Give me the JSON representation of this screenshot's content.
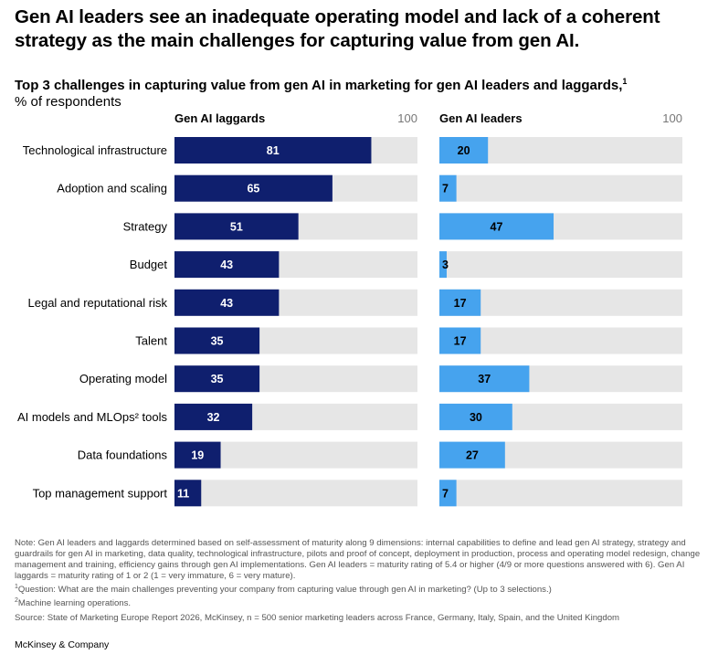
{
  "headline": "Gen AI leaders see an inadequate operating model and lack of a coherent strategy as the main challenges for capturing value from gen AI.",
  "subtitle": "Top 3 challenges in capturing value from gen AI in marketing for gen AI leaders and laggards,",
  "subtitle_footnote": "1",
  "unit_label": "% of respondents",
  "chart_data": {
    "type": "bar",
    "orientation": "horizontal",
    "categories": [
      "Technological infrastructure",
      "Adoption and scaling",
      "Strategy",
      "Budget",
      "Legal and reputational risk",
      "Talent",
      "Operating model",
      "AI models and MLOps² tools",
      "Data foundations",
      "Top management support"
    ],
    "series": [
      {
        "name": "Gen AI laggards",
        "color": "#0f1f6e",
        "values": [
          81,
          65,
          51,
          43,
          43,
          35,
          35,
          32,
          19,
          11
        ]
      },
      {
        "name": "Gen AI leaders",
        "color": "#46a3ee",
        "values": [
          20,
          7,
          47,
          3,
          17,
          17,
          37,
          30,
          27,
          7
        ]
      }
    ],
    "xlim": [
      0,
      100
    ],
    "max_label": "100",
    "track_color": "#e6e6e6"
  },
  "notes": [
    "Note: Gen AI leaders and laggards determined based on self-assessment of maturity along 9 dimensions: internal capabilities to define and lead gen AI strategy, strategy and guardrails for gen AI in marketing, data quality, technological infrastructure, pilots and proof of concept, deployment in production, process and operating model redesign, change management and training, efficiency gains through gen AI implementations. Gen AI leaders = maturity rating of 5.4 or higher (4/9 or more questions answered with 6). Gen AI laggards = maturity rating of 1 or 2 (1 = very immature, 6 = very mature).",
    "Question: What are the main challenges preventing your company from capturing value through gen AI in marketing? (Up to 3 selections.)",
    "Machine learning operations.",
    "Source: State of Marketing Europe Report 2026, McKinsey, n = 500 senior marketing leaders across France, Germany, Italy, Spain, and the United Kingdom"
  ],
  "note_marks": [
    "",
    "1",
    "2",
    ""
  ],
  "brand": "McKinsey & Company"
}
